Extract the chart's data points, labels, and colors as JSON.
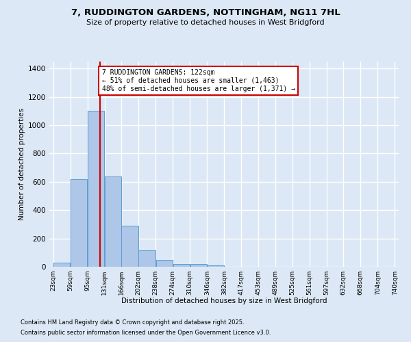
{
  "title_line1": "7, RUDDINGTON GARDENS, NOTTINGHAM, NG11 7HL",
  "title_line2": "Size of property relative to detached houses in West Bridgford",
  "xlabel": "Distribution of detached houses by size in West Bridgford",
  "ylabel": "Number of detached properties",
  "bar_color": "#aec6e8",
  "bar_edge_color": "#5a9fd4",
  "background_color": "#dce8f5",
  "grid_color": "#ffffff",
  "bin_edges": [
    23,
    59,
    95,
    131,
    166,
    202,
    238,
    274,
    310,
    346,
    382,
    417,
    453,
    489,
    525,
    561,
    597,
    632,
    668,
    704,
    740
  ],
  "bar_heights": [
    30,
    620,
    1100,
    640,
    290,
    115,
    48,
    20,
    20,
    10,
    0,
    0,
    0,
    0,
    0,
    0,
    0,
    0,
    0,
    0
  ],
  "red_line_x": 122,
  "annotation_text": "7 RUDDINGTON GARDENS: 122sqm\n← 51% of detached houses are smaller (1,463)\n48% of semi-detached houses are larger (1,371) →",
  "annotation_box_color": "#ffffff",
  "annotation_border_color": "#cc0000",
  "ylim": [
    0,
    1450
  ],
  "yticks": [
    0,
    200,
    400,
    600,
    800,
    1000,
    1200,
    1400
  ],
  "footnote1": "Contains HM Land Registry data © Crown copyright and database right 2025.",
  "footnote2": "Contains public sector information licensed under the Open Government Licence v3.0."
}
